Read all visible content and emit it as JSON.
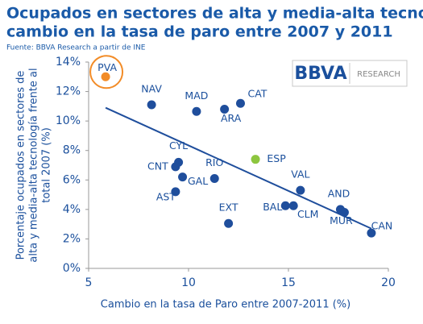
{
  "chart_data": {
    "type": "scatter",
    "title": [
      "Ocupados en sectores de alta y media-alta tecnología vs",
      "cambio en la tasa de paro entre 2007 y 2011"
    ],
    "source": "Fuente: BBVA Research a partir de INE",
    "logo": {
      "brand": "BBVA",
      "unit": "RESEARCH"
    },
    "x_label": "Cambio en la tasa de Paro entre 2007-2011 (%)",
    "y_label": [
      "Porcentaje ocupados en sectores de",
      "alta y media-alta tecnología frente al",
      "total 2007 (%)"
    ],
    "points": {
      "labels": [
        "PVA",
        "NAV",
        "MAD",
        "ARA",
        "CAT",
        "ESP",
        "CYL",
        "CNT",
        "GAL",
        "RIO",
        "AST",
        "EXT",
        "BAL",
        "CLM",
        "VAL",
        "AND",
        "MUR",
        "CAN"
      ],
      "x": [
        5.85,
        8.15,
        10.4,
        11.8,
        12.6,
        13.35,
        9.5,
        9.35,
        9.7,
        11.3,
        9.35,
        12.0,
        14.85,
        15.25,
        15.6,
        17.6,
        17.8,
        19.15
      ],
      "y": [
        13.0,
        11.1,
        10.65,
        10.8,
        11.2,
        7.4,
        7.2,
        6.9,
        6.2,
        6.1,
        5.2,
        3.05,
        4.25,
        4.25,
        5.3,
        4.0,
        3.8,
        2.4
      ],
      "colors": [
        "#f28c28",
        "#1f4e9c",
        "#1f4e9c",
        "#1f4e9c",
        "#1f4e9c",
        "#8dc63f",
        "#1f4e9c",
        "#1f4e9c",
        "#1f4e9c",
        "#1f4e9c",
        "#1f4e9c",
        "#1f4e9c",
        "#1f4e9c",
        "#1f4e9c",
        "#1f4e9c",
        "#1f4e9c",
        "#1f4e9c",
        "#1f4e9c"
      ]
    },
    "trendline": {
      "x": [
        5.85,
        19.15
      ],
      "y": [
        10.9,
        2.7
      ],
      "color": "#1f4e9c"
    },
    "xlim": [
      5,
      20
    ],
    "ylim": [
      0,
      14
    ],
    "xticks": [
      5,
      10,
      15,
      20
    ],
    "yticks": [
      {
        "value": 0,
        "label": "0%"
      },
      {
        "value": 2,
        "label": "2%"
      },
      {
        "value": 4,
        "label": "4%"
      },
      {
        "value": 6,
        "label": "6%"
      },
      {
        "value": 8,
        "label": "8%"
      },
      {
        "value": 10,
        "label": "10%"
      },
      {
        "value": 12,
        "label": "12%"
      },
      {
        "value": 14,
        "label": "14%"
      }
    ]
  }
}
